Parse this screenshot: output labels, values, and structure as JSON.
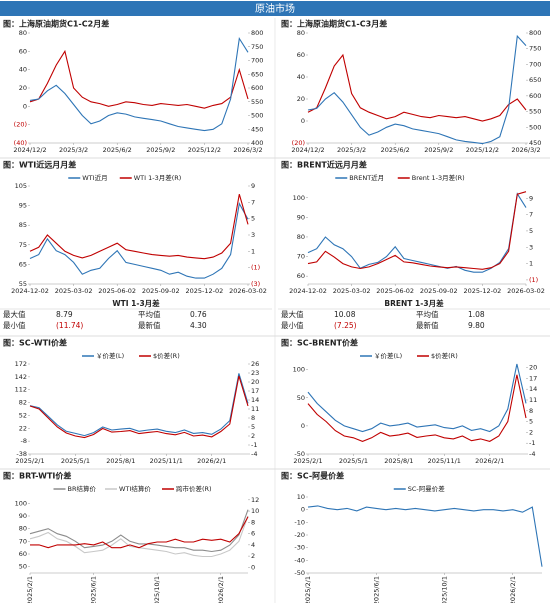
{
  "header": {
    "title": "原油市场"
  },
  "chart_data": [
    {
      "type": "line",
      "title": "图：上海原油期货C1-C2月差",
      "categories": [
        "2024/12/2",
        null,
        null,
        null,
        null,
        "2025/3/2",
        null,
        null,
        null,
        null,
        "2025/6/2",
        null,
        null,
        null,
        null,
        "2025/9/2",
        null,
        null,
        null,
        null,
        "2025/12/2",
        null,
        null,
        null,
        null,
        "2026/3/2"
      ],
      "series": [
        {
          "color": "#c00000",
          "values": [
            5,
            8,
            25,
            45,
            60,
            20,
            10,
            5,
            3,
            0,
            2,
            5,
            4,
            2,
            1,
            3,
            2,
            1,
            2,
            0,
            -2,
            1,
            3,
            10,
            40,
            8
          ]
        },
        {
          "color": "#2e75b6",
          "axis": "y2",
          "values": [
            555,
            560,
            590,
            610,
            580,
            540,
            500,
            470,
            480,
            500,
            510,
            505,
            495,
            490,
            485,
            480,
            470,
            460,
            455,
            450,
            445,
            450,
            470,
            560,
            780,
            730
          ]
        }
      ],
      "ylim": [
        -40,
        80
      ],
      "yticks": [
        80,
        60,
        40,
        20,
        0,
        {
          "value": -20,
          "label": "(20)"
        },
        {
          "value": -40,
          "label": "(40)"
        }
      ],
      "y2lim": [
        400,
        800
      ],
      "y2ticks": [
        800,
        750,
        700,
        650,
        600,
        550,
        500,
        450,
        400
      ]
    },
    {
      "type": "line",
      "title": "图：上海原油期货C1-C3月差",
      "categories": [
        "2024/12/2",
        null,
        null,
        null,
        null,
        "2025/3/2",
        null,
        null,
        null,
        null,
        "2025/6/2",
        null,
        null,
        null,
        null,
        "2025/9/2",
        null,
        null,
        null,
        null,
        "2025/12/2",
        null,
        null,
        null,
        null,
        "2026/3/2"
      ],
      "series": [
        {
          "color": "#c00000",
          "values": [
            8,
            12,
            30,
            50,
            60,
            25,
            12,
            8,
            5,
            2,
            4,
            8,
            6,
            4,
            3,
            5,
            4,
            3,
            4,
            2,
            0,
            2,
            5,
            15,
            20,
            10
          ]
        },
        {
          "color": "#2e75b6",
          "axis": "y2",
          "values": [
            555,
            560,
            590,
            610,
            580,
            540,
            500,
            475,
            485,
            500,
            510,
            505,
            495,
            490,
            485,
            480,
            470,
            460,
            455,
            452,
            448,
            455,
            470,
            560,
            790,
            760
          ]
        }
      ],
      "ylim": [
        -20,
        80
      ],
      "yticks": [
        80,
        60,
        40,
        20,
        0,
        {
          "value": -20,
          "label": "(20)"
        }
      ],
      "y2lim": [
        450,
        800
      ],
      "y2ticks": [
        800,
        750,
        700,
        650,
        600,
        550,
        500,
        450
      ]
    },
    {
      "type": "line",
      "title": "图：WTI近远月月差",
      "categories": [
        "2024-12-02",
        null,
        null,
        null,
        null,
        "2025-03-02",
        null,
        null,
        null,
        null,
        "2025-06-02",
        null,
        null,
        null,
        null,
        "2025-09-02",
        null,
        null,
        null,
        null,
        "2025-12-02",
        null,
        null,
        null,
        null,
        "2026-03-02"
      ],
      "series": [
        {
          "name": "WTI近月",
          "color": "#2e75b6",
          "values": [
            68,
            70,
            78,
            72,
            70,
            66,
            60,
            62,
            63,
            68,
            72,
            66,
            65,
            64,
            63,
            62,
            60,
            61,
            59,
            58,
            58,
            60,
            63,
            70,
            96,
            88
          ]
        },
        {
          "name": "WTI 1-3月差(R)",
          "color": "#c00000",
          "axis": "y2",
          "values": [
            1,
            1.5,
            3,
            2,
            1,
            0.5,
            0.2,
            0.5,
            1,
            1.5,
            2,
            1.2,
            1,
            0.8,
            0.6,
            0.5,
            0.4,
            0.5,
            0.3,
            0.2,
            0.1,
            0.3,
            0.8,
            2,
            8,
            4.3
          ]
        }
      ],
      "ylim": [
        55,
        105
      ],
      "yticks": [
        105,
        95,
        85,
        75,
        65,
        55
      ],
      "y2lim": [
        -3,
        9
      ],
      "y2ticks": [
        9,
        7,
        5,
        3,
        1,
        {
          "value": -1,
          "label": "(1)"
        },
        {
          "value": -3,
          "label": "(3)"
        }
      ]
    },
    {
      "type": "line",
      "title": "图：BRENT近远月月差",
      "categories": [
        "2024-12-02",
        null,
        null,
        null,
        null,
        "2025-03-02",
        null,
        null,
        null,
        null,
        "2025-06-02",
        null,
        null,
        null,
        null,
        "2025-09-02",
        null,
        null,
        null,
        null,
        "2025-12-02",
        null,
        null,
        null,
        null,
        "2026-03-02"
      ],
      "series": [
        {
          "name": "BRENT近月",
          "color": "#2e75b6",
          "values": [
            72,
            74,
            80,
            76,
            74,
            70,
            64,
            66,
            67,
            70,
            75,
            69,
            68,
            67,
            66,
            65,
            64,
            65,
            63,
            62,
            62,
            64,
            67,
            74,
            102,
            95
          ]
        },
        {
          "name": "Brent 1-3月差(R)",
          "color": "#c00000",
          "axis": "y2",
          "values": [
            1,
            1.2,
            2.5,
            1.8,
            1,
            0.6,
            0.4,
            0.6,
            1,
            1.5,
            2,
            1.2,
            1.1,
            0.9,
            0.7,
            0.6,
            0.5,
            0.6,
            0.5,
            0.4,
            0.3,
            0.5,
            1,
            2.5,
            9.5,
            9.8
          ]
        }
      ],
      "ylim": [
        56,
        106
      ],
      "yticks": [
        100,
        90,
        80,
        70,
        60
      ],
      "y2lim": [
        -1.5,
        10.5
      ],
      "y2ticks": [
        9,
        7,
        5,
        3,
        1,
        {
          "value": -1,
          "label": "(1)"
        }
      ]
    },
    {
      "type": "line",
      "title": "图：SC-WTI价差",
      "categories": [
        "2025/2/1",
        null,
        null,
        null,
        null,
        "2025/5/1",
        null,
        null,
        null,
        null,
        "2025/8/1",
        null,
        null,
        null,
        null,
        "2025/11/1",
        null,
        null,
        null,
        null,
        "2026/2/1",
        null,
        null,
        null,
        null
      ],
      "series": [
        {
          "name": "￥价差(L)",
          "color": "#2e75b6",
          "values": [
            75,
            70,
            50,
            30,
            15,
            10,
            5,
            12,
            25,
            18,
            20,
            22,
            15,
            18,
            20,
            15,
            12,
            18,
            10,
            12,
            8,
            20,
            40,
            150,
            80
          ]
        },
        {
          "name": "$价差(R)",
          "color": "#c00000",
          "axis": "y2",
          "values": [
            12,
            11,
            8,
            5,
            3,
            2,
            1.5,
            2.5,
            4.5,
            3.3,
            3.5,
            3.8,
            2.8,
            3.2,
            3.5,
            2.8,
            2.4,
            3.2,
            2,
            2.3,
            1.7,
            3.5,
            6,
            22,
            12
          ]
        }
      ],
      "ylim": [
        -38,
        172
      ],
      "yticks": [
        172,
        142,
        112,
        82,
        52,
        22,
        -8,
        -38
      ],
      "y2lim": [
        -4,
        26
      ],
      "y2ticks": [
        26,
        23,
        20,
        17,
        14,
        11,
        8,
        5,
        2,
        -1,
        -4
      ]
    },
    {
      "type": "line",
      "title": "图：SC-BRENT价差",
      "categories": [
        "2025/2/1",
        null,
        null,
        null,
        null,
        "2025/5/1",
        null,
        null,
        null,
        null,
        "2025/8/1",
        null,
        null,
        null,
        null,
        "2025/11/1",
        null,
        null,
        null,
        null,
        "2026/2/1",
        null,
        null,
        null,
        null
      ],
      "series": [
        {
          "name": "￥价差(L)",
          "color": "#2e75b6",
          "values": [
            60,
            40,
            25,
            10,
            0,
            -5,
            -10,
            -5,
            5,
            0,
            2,
            5,
            -2,
            0,
            2,
            -3,
            -5,
            0,
            -8,
            -5,
            -10,
            0,
            30,
            110,
            40
          ]
        },
        {
          "name": "$价差(R)",
          "color": "#c00000",
          "axis": "y2",
          "values": [
            10,
            7,
            5,
            2.5,
            1,
            0.5,
            -0.5,
            0.5,
            2,
            1,
            1.3,
            1.8,
            0.6,
            1,
            1.3,
            0.5,
            0.2,
            1,
            -0.3,
            0.2,
            -0.5,
            1,
            5,
            18,
            6
          ]
        }
      ],
      "ylim": [
        -50,
        110
      ],
      "yticks": [
        100,
        50,
        0,
        -50
      ],
      "y2lim": [
        -4,
        21
      ],
      "y2ticks": [
        20,
        17,
        14,
        11,
        8,
        5,
        2,
        -1,
        -4
      ]
    },
    {
      "type": "line",
      "title": "图：BRT-WTI价差",
      "categories": [
        "2025/2/1",
        null,
        null,
        null,
        null,
        null,
        null,
        "2025/6/1",
        null,
        null,
        null,
        null,
        null,
        null,
        "2025/10/1",
        null,
        null,
        null,
        null,
        null,
        null,
        "2026/2/1",
        null,
        null,
        null
      ],
      "series": [
        {
          "name": "BR结算价",
          "color": "#8c8c8c",
          "values": [
            76,
            78,
            80,
            76,
            74,
            70,
            65,
            66,
            67,
            70,
            75,
            70,
            68,
            68,
            67,
            66,
            65,
            65,
            63,
            63,
            62,
            63,
            67,
            75,
            95
          ]
        },
        {
          "name": "WTI结算价",
          "color": "#c8c8c8",
          "values": [
            72,
            74,
            77,
            72,
            70,
            66,
            61,
            62,
            63,
            67,
            72,
            66,
            65,
            64,
            63,
            62,
            60,
            61,
            59,
            58,
            58,
            60,
            63,
            70,
            90
          ]
        },
        {
          "name": "跨市价差(R)",
          "color": "#c00000",
          "axis": "y2",
          "values": [
            4,
            4,
            3.5,
            4,
            4,
            4,
            4.2,
            4,
            4.5,
            3.5,
            3.5,
            4,
            3.5,
            4.2,
            4.5,
            4.5,
            5,
            4.5,
            4.5,
            5,
            4.8,
            5,
            4.5,
            6,
            9
          ]
        }
      ],
      "ylim": [
        45,
        105
      ],
      "yticks": [
        100,
        90,
        80,
        70,
        60,
        50
      ],
      "y2lim": [
        -1,
        12.5
      ],
      "y2ticks": [
        12,
        10,
        8,
        6,
        4,
        2,
        0
      ]
    },
    {
      "type": "line",
      "title": "图：SC-阿曼价差",
      "categories": [
        "2025/2/1",
        null,
        null,
        null,
        null,
        null,
        null,
        "2025/6/1",
        null,
        null,
        null,
        null,
        null,
        null,
        "2025/10/1",
        null,
        null,
        null,
        null,
        null,
        null,
        "2026/2/1",
        null,
        null,
        null
      ],
      "series": [
        {
          "name": "SC-阿曼价差",
          "color": "#2e75b6",
          "values": [
            2,
            3,
            1,
            0,
            1,
            -1,
            2,
            1,
            0,
            1,
            0,
            1,
            0,
            -1,
            0,
            1,
            0,
            -1,
            0,
            0,
            -1,
            0,
            -2,
            2,
            -45
          ]
        }
      ],
      "ylim": [
        -50,
        10
      ],
      "yticks": [
        10,
        0,
        -10,
        -20,
        -30,
        -40,
        -50
      ]
    }
  ],
  "tables": [
    {
      "title": "WTI 1-3月差",
      "rows": [
        [
          "最大值",
          "8.79",
          "平均值",
          "0.76"
        ],
        [
          "最小值",
          "(11.74)",
          "最新值",
          "4.30"
        ]
      ]
    },
    {
      "title": "BRENT 1-3月差",
      "rows": [
        [
          "最大值",
          "10.08",
          "平均值",
          "1.08"
        ],
        [
          "最小值",
          "(7.25)",
          "最新值",
          "9.80"
        ]
      ]
    }
  ]
}
